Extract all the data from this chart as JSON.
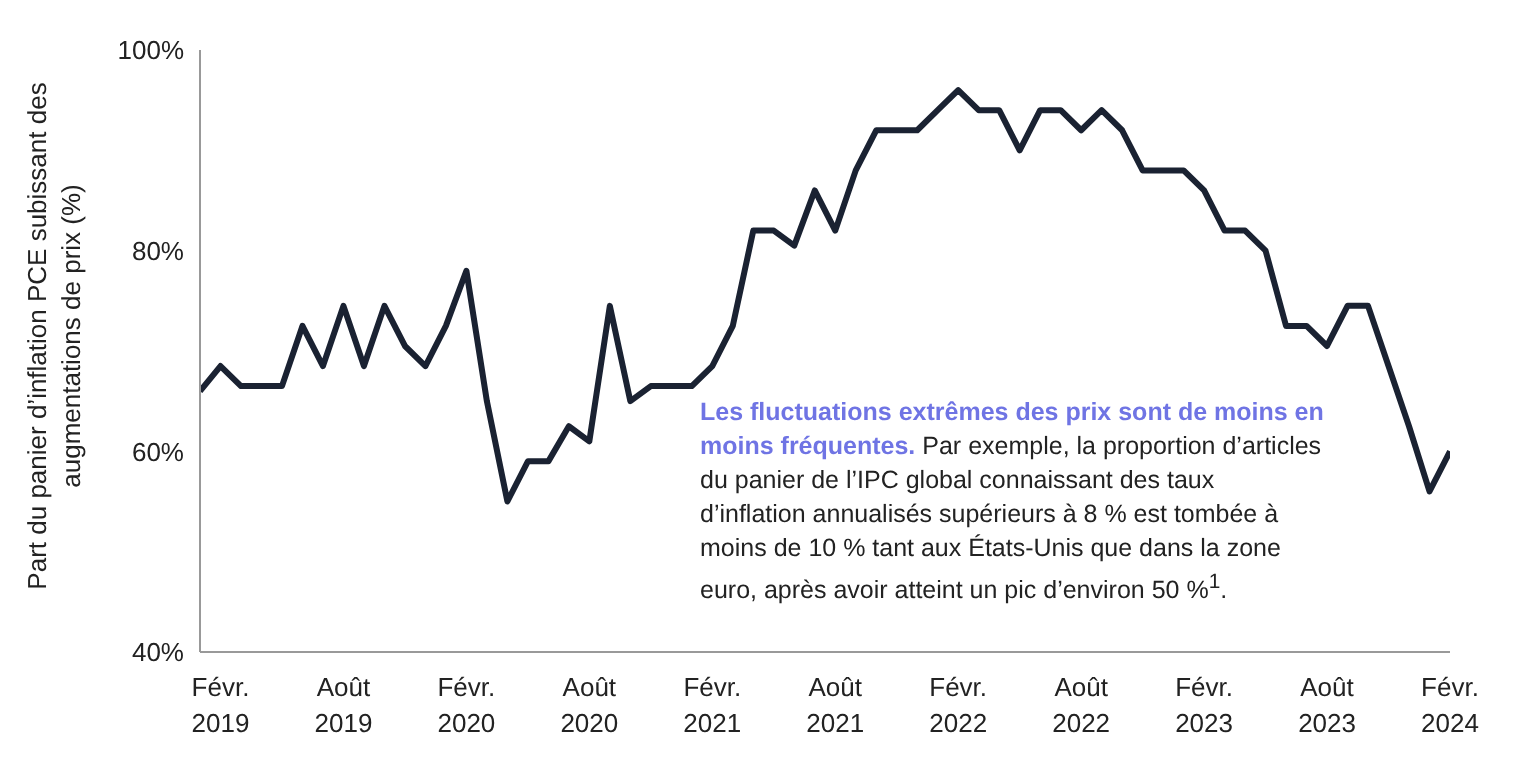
{
  "chart_data": {
    "type": "line",
    "ylabel": "Part du panier d’inflation PCE subissant des augmentations de prix (%)",
    "x": [
      "2019-01",
      "2019-02",
      "2019-03",
      "2019-04",
      "2019-05",
      "2019-06",
      "2019-07",
      "2019-08",
      "2019-09",
      "2019-10",
      "2019-11",
      "2019-12",
      "2020-01",
      "2020-02",
      "2020-03",
      "2020-04",
      "2020-05",
      "2020-06",
      "2020-07",
      "2020-08",
      "2020-09",
      "2020-10",
      "2020-11",
      "2020-12",
      "2021-01",
      "2021-02",
      "2021-03",
      "2021-04",
      "2021-05",
      "2021-06",
      "2021-07",
      "2021-08",
      "2021-09",
      "2021-10",
      "2021-11",
      "2021-12",
      "2022-01",
      "2022-02",
      "2022-03",
      "2022-04",
      "2022-05",
      "2022-06",
      "2022-07",
      "2022-08",
      "2022-09",
      "2022-10",
      "2022-11",
      "2022-12",
      "2023-01",
      "2023-02",
      "2023-03",
      "2023-04",
      "2023-05",
      "2023-06",
      "2023-07",
      "2023-08",
      "2023-09",
      "2023-10",
      "2023-11",
      "2023-12",
      "2024-01",
      "2024-02"
    ],
    "series": [
      {
        "color": "#1a2232",
        "values": [
          66,
          68.5,
          66.5,
          66.5,
          66.5,
          72.5,
          68.5,
          74.5,
          68.5,
          74.5,
          70.5,
          68.5,
          72.5,
          78,
          65,
          55,
          59,
          59,
          62.5,
          61,
          74.5,
          65,
          66.5,
          66.5,
          66.5,
          68.5,
          72.5,
          82,
          82,
          80.5,
          86,
          82,
          88,
          92,
          92,
          92,
          94,
          96,
          94,
          94,
          90,
          94,
          94,
          92,
          94,
          92,
          88,
          88,
          88,
          86,
          82,
          82,
          80,
          72.5,
          72.5,
          70.5,
          74.5,
          74.5,
          68.5,
          62.5,
          56,
          60
        ]
      }
    ],
    "xlim": [
      "2019-01",
      "2024-02"
    ],
    "xticks": [
      {
        "value": "2019-02",
        "label": "Févr. 2019"
      },
      {
        "value": "2019-08",
        "label": "Août 2019"
      },
      {
        "value": "2020-02",
        "label": "Févr. 2020"
      },
      {
        "value": "2020-08",
        "label": "Août 2020"
      },
      {
        "value": "2021-02",
        "label": "Févr. 2021"
      },
      {
        "value": "2021-08",
        "label": "Août 2021"
      },
      {
        "value": "2022-02",
        "label": "Févr. 2022"
      },
      {
        "value": "2022-08",
        "label": "Août 2022"
      },
      {
        "value": "2023-02",
        "label": "Févr. 2023"
      },
      {
        "value": "2023-08",
        "label": "Août 2023"
      },
      {
        "value": "2024-02",
        "label": "Févr. 2024"
      }
    ],
    "ylim": [
      40,
      100
    ],
    "yticks": [
      {
        "value": 40,
        "label": "40%"
      },
      {
        "value": 60,
        "label": "60%"
      },
      {
        "value": 80,
        "label": "80%"
      },
      {
        "value": 100,
        "label": "100%"
      }
    ],
    "grid": false,
    "marker": "none",
    "line_style": "solid",
    "annotations": [
      "Les fluctuations extrêmes des prix sont de moins en moins fréquentes.",
      "Par exemple, la proportion d’articles du panier de l’IPC global connaissant des taux d’inflation annualisés supérieurs à 8 % est tombée à moins de 10 % tant aux États-Unis que dans la zone euro, après avoir atteint un pic d’environ 50 %$^{1}$."
    ]
  }
}
